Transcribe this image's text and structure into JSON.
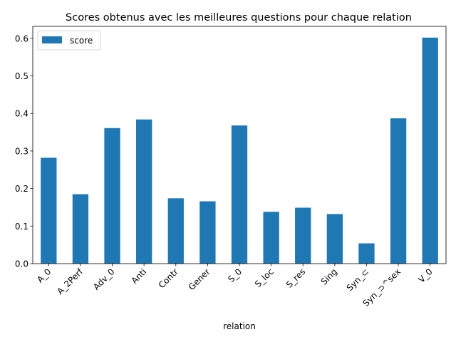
{
  "chart_data": {
    "type": "bar",
    "title": "Scores obtenus avec les meilleures questions pour chaque relation",
    "xlabel": "relation",
    "ylabel": "",
    "categories": [
      "A_0",
      "A_2Perf",
      "Adv_0",
      "Anti",
      "Contr",
      "Gener",
      "S_0",
      "S_loc",
      "S_res",
      "Sing",
      "Syn_⊂",
      "Syn_⊃^sex",
      "V_0"
    ],
    "series": [
      {
        "name": "score",
        "color": "#1f77b4",
        "values": [
          0.282,
          0.185,
          0.361,
          0.384,
          0.174,
          0.166,
          0.368,
          0.138,
          0.149,
          0.132,
          0.054,
          0.387,
          0.602
        ]
      }
    ],
    "yticks": [
      "0.0",
      "0.1",
      "0.2",
      "0.3",
      "0.4",
      "0.5",
      "0.6"
    ],
    "ylim": [
      0,
      0.632
    ],
    "grid": false,
    "legend": "top-left"
  }
}
